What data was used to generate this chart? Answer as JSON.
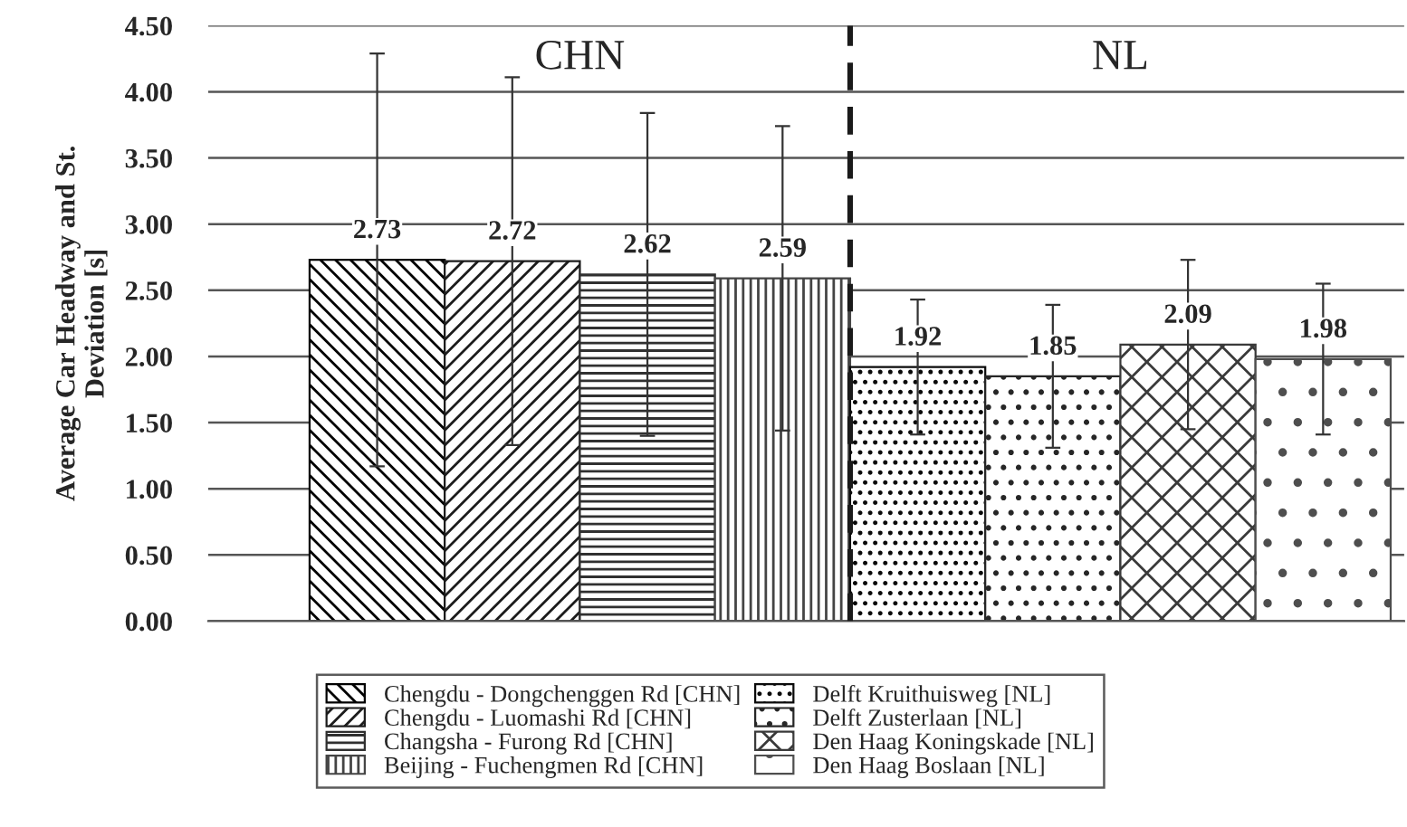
{
  "chart_data": {
    "type": "bar",
    "ylabel": "Average Car Headway and St.\nDeviation [s]",
    "categories": [
      null,
      null,
      null,
      null,
      null,
      null,
      null,
      null
    ],
    "series": [
      {
        "name": "Chengdu - Dongchenggen Rd [CHN]",
        "color": "#000000",
        "values": [
          2.73,
          null,
          null,
          null,
          null,
          null,
          null,
          null
        ],
        "errors": [
          1.56,
          null,
          null,
          null,
          null,
          null,
          null,
          null
        ]
      },
      {
        "name": "Chengdu - Luomashi Rd [CHN]",
        "color": "#1c1c1c",
        "values": [
          null,
          2.72,
          null,
          null,
          null,
          null,
          null,
          null
        ],
        "errors": [
          null,
          1.39,
          null,
          null,
          null,
          null,
          null,
          null
        ]
      },
      {
        "name": "Changsha - Furong Rd [CHN]",
        "color": "#303030",
        "values": [
          null,
          null,
          2.62,
          null,
          null,
          null,
          null,
          null
        ],
        "errors": [
          null,
          null,
          1.22,
          null,
          null,
          null,
          null,
          null
        ]
      },
      {
        "name": "Beijing - Fuchengmen Rd [CHN]",
        "color": "#444444",
        "values": [
          null,
          null,
          null,
          2.59,
          null,
          null,
          null,
          null
        ],
        "errors": [
          null,
          null,
          null,
          1.15,
          null,
          null,
          null,
          null
        ]
      },
      {
        "name": "Delft Kruithuisweg [NL]",
        "color": "#0a0a0a",
        "values": [
          null,
          null,
          null,
          null,
          1.92,
          null,
          null,
          null
        ],
        "errors": [
          null,
          null,
          null,
          null,
          0.51,
          null,
          null,
          null
        ]
      },
      {
        "name": "Delft Zusterlaan [NL]",
        "color": "#262626",
        "values": [
          null,
          null,
          null,
          null,
          null,
          1.85,
          null,
          null
        ],
        "errors": [
          null,
          null,
          null,
          null,
          null,
          0.54,
          null,
          null
        ]
      },
      {
        "name": "Den Haag Koningskade [NL]",
        "color": "#3a3a3a",
        "values": [
          null,
          null,
          null,
          null,
          null,
          null,
          2.09,
          null
        ],
        "errors": [
          null,
          null,
          null,
          null,
          null,
          null,
          0.64,
          null
        ]
      },
      {
        "name": "Den Haag Boslaan [NL]",
        "color": "#4e4e4e",
        "values": [
          null,
          null,
          null,
          null,
          null,
          null,
          null,
          1.98
        ],
        "errors": [
          null,
          null,
          null,
          null,
          null,
          null,
          null,
          0.57
        ]
      }
    ],
    "ylim": [
      0,
      4.5
    ],
    "yticks": [
      {
        "value": 0,
        "label": "0.00"
      },
      {
        "value": 0.5,
        "label": "0.50"
      },
      {
        "value": 1,
        "label": "1.00"
      },
      {
        "value": 1.5,
        "label": "1.50"
      },
      {
        "value": 2,
        "label": "2.00"
      },
      {
        "value": 2.5,
        "label": "2.50"
      },
      {
        "value": 3,
        "label": "3.00"
      },
      {
        "value": 3.5,
        "label": "3.50"
      },
      {
        "value": 4,
        "label": "4.00"
      },
      {
        "value": 4.5,
        "label": "4.50"
      }
    ],
    "annotations": [
      "CHN",
      "NL"
    ],
    "data_labels": true,
    "stacked": true,
    "grid": "y",
    "legend": "bottom"
  }
}
